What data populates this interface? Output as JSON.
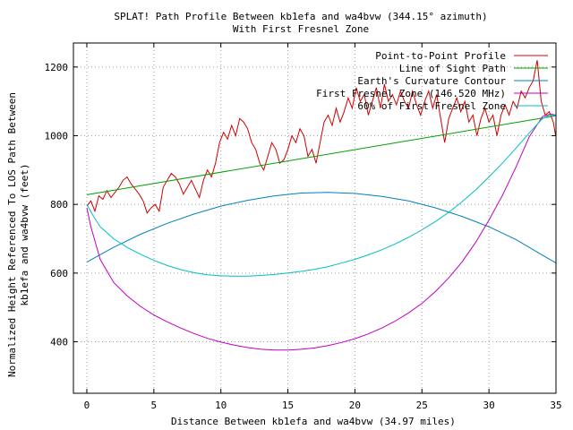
{
  "chart_data": {
    "type": "line",
    "title": "SPLAT! Path Profile Between kb1efa and wa4bvw (344.15° azimuth)",
    "subtitle": "With First Fresnel Zone",
    "xlabel": "Distance Between kb1efa and wa4bvw (34.97 miles)",
    "ylabel": "Normalized Height Referenced To LOS Path Between",
    "ylabel2": "kb1efa and wa4bvw (feet)",
    "xlim": [
      -1,
      35
    ],
    "ylim": [
      250,
      1270
    ],
    "xticks": [
      0,
      5,
      10,
      15,
      20,
      25,
      30,
      35
    ],
    "yticks": [
      400,
      600,
      800,
      1000,
      1200
    ],
    "grid": true,
    "legend_position": "top-right",
    "series": [
      {
        "name": "Point-to-Point Profile",
        "color": "#d00000",
        "x": [
          0,
          0.3,
          0.6,
          0.9,
          1.2,
          1.5,
          1.8,
          2.1,
          2.4,
          2.7,
          3.0,
          3.3,
          3.6,
          3.9,
          4.2,
          4.5,
          4.8,
          5.1,
          5.4,
          5.7,
          6.0,
          6.3,
          6.6,
          6.9,
          7.2,
          7.5,
          7.8,
          8.1,
          8.4,
          8.7,
          9.0,
          9.3,
          9.6,
          9.9,
          10.2,
          10.5,
          10.8,
          11.1,
          11.4,
          11.7,
          12.0,
          12.3,
          12.6,
          12.9,
          13.2,
          13.5,
          13.8,
          14.1,
          14.4,
          14.7,
          15.0,
          15.3,
          15.6,
          15.9,
          16.2,
          16.5,
          16.8,
          17.1,
          17.4,
          17.7,
          18.0,
          18.3,
          18.6,
          18.9,
          19.2,
          19.5,
          19.8,
          20.1,
          20.4,
          20.7,
          21.0,
          21.3,
          21.6,
          21.9,
          22.2,
          22.5,
          22.8,
          23.1,
          23.4,
          23.7,
          24.0,
          24.3,
          24.6,
          24.9,
          25.2,
          25.5,
          25.8,
          26.1,
          26.4,
          26.7,
          27.0,
          27.3,
          27.6,
          27.9,
          28.2,
          28.5,
          28.8,
          29.1,
          29.4,
          29.7,
          30.0,
          30.3,
          30.6,
          30.9,
          31.2,
          31.5,
          31.8,
          32.1,
          32.4,
          32.7,
          33.0,
          33.3,
          33.6,
          33.9,
          34.2,
          34.5,
          34.8,
          34.97
        ],
        "values": [
          795,
          810,
          780,
          825,
          815,
          840,
          820,
          835,
          850,
          870,
          880,
          860,
          845,
          830,
          810,
          775,
          790,
          800,
          780,
          850,
          870,
          890,
          880,
          860,
          830,
          850,
          870,
          845,
          820,
          870,
          900,
          880,
          920,
          980,
          1010,
          990,
          1030,
          1000,
          1050,
          1040,
          1020,
          980,
          960,
          920,
          900,
          940,
          980,
          960,
          920,
          930,
          960,
          1000,
          980,
          1020,
          1000,
          940,
          960,
          920,
          980,
          1040,
          1060,
          1030,
          1080,
          1040,
          1070,
          1110,
          1080,
          1140,
          1100,
          1120,
          1060,
          1100,
          1140,
          1080,
          1150,
          1100,
          1120,
          1090,
          1130,
          1100,
          1080,
          1130,
          1090,
          1060,
          1100,
          1130,
          1080,
          1120,
          1050,
          980,
          1050,
          1080,
          1110,
          1070,
          1100,
          1040,
          1060,
          1000,
          1050,
          1080,
          1040,
          1060,
          1000,
          1060,
          1090,
          1060,
          1100,
          1080,
          1130,
          1110,
          1140,
          1160,
          1220,
          1100,
          1060,
          1070,
          1040,
          1000
        ]
      },
      {
        "name": "Line of Sight Path",
        "color": "#00a000",
        "x": [
          0,
          34.97
        ],
        "values": [
          828,
          1058
        ]
      },
      {
        "name": "Earth's Curvature Contour",
        "color": "#0080c0",
        "x": [
          0,
          2,
          4,
          6,
          8,
          10,
          12,
          14,
          16,
          18,
          20,
          22,
          24,
          26,
          28,
          30,
          32,
          34,
          34.97
        ],
        "values": [
          632,
          675,
          713,
          745,
          772,
          795,
          812,
          825,
          833,
          835,
          832,
          823,
          810,
          790,
          765,
          735,
          698,
          652,
          630
        ]
      },
      {
        "name": "First Fresnel Zone (146.520 MHz)",
        "color": "#c000c0",
        "x": [
          0,
          0.3,
          1,
          2,
          3,
          4,
          5,
          6,
          7,
          8,
          9,
          10,
          11,
          12,
          13,
          14,
          15,
          16,
          17,
          18,
          19,
          20,
          21,
          22,
          23,
          24,
          25,
          26,
          27,
          28,
          29,
          30,
          31,
          32,
          33,
          34,
          34.6,
          34.97
        ],
        "values": [
          790,
          735,
          640,
          573,
          534,
          503,
          478,
          458,
          440,
          424,
          410,
          399,
          390,
          383,
          378,
          376,
          376,
          378,
          382,
          389,
          398,
          409,
          423,
          440,
          460,
          484,
          512,
          546,
          586,
          633,
          689,
          754,
          826,
          907,
          997,
          1056,
          1063,
          1060
        ]
      },
      {
        "name": "60% of First Fresnel Zone",
        "color": "#00c0c0",
        "x": [
          0,
          0.5,
          1,
          2,
          3,
          4,
          5,
          6,
          7,
          8,
          9,
          10,
          11,
          12,
          13,
          14,
          15,
          16,
          17,
          18,
          19,
          20,
          21,
          22,
          23,
          24,
          25,
          26,
          27,
          28,
          29,
          30,
          31,
          32,
          33,
          34,
          34.5,
          34.97
        ],
        "values": [
          800,
          765,
          735,
          700,
          675,
          655,
          637,
          622,
          610,
          601,
          595,
          592,
          591,
          591,
          593,
          596,
          600,
          605,
          611,
          619,
          629,
          640,
          653,
          668,
          685,
          704,
          726,
          750,
          777,
          808,
          842,
          880,
          920,
          963,
          1008,
          1050,
          1060,
          1058
        ]
      }
    ]
  }
}
